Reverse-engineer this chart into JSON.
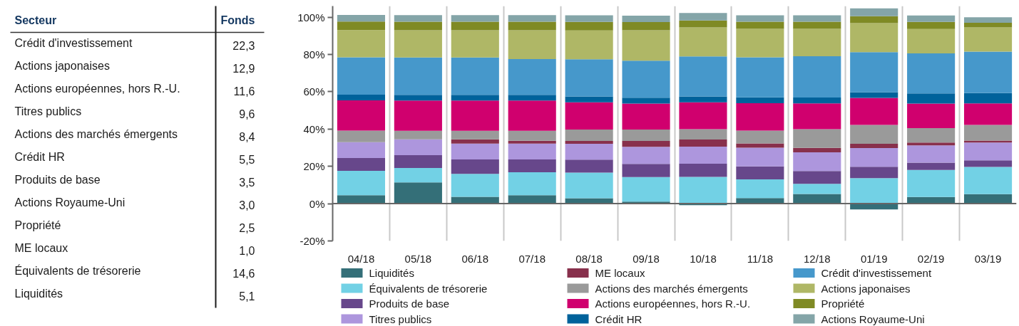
{
  "chart_data": [
    {
      "type": "other",
      "xlabel": "Secteur",
      "ylabel": "Fonds",
      "categories": [
        "Crédit d'investissement",
        "Actions japonaises",
        "Actions européennes, hors R.-U.",
        "Titres publics",
        "Actions des marchés émergents",
        "Crédit HR",
        "Produits de base",
        "Actions Royaume-Uni",
        "Propriété",
        "ME locaux",
        "Équivalents de trésorerie",
        "Liquidités"
      ],
      "value_labels": [
        "22,3",
        "12,9",
        "11,6",
        "9,6",
        "8,4",
        "5,5",
        "3,5",
        "3,0",
        "2,5",
        "1,0",
        "14,6",
        "5,1"
      ]
    },
    {
      "type": "bar",
      "stacked": true,
      "categories": [
        "04/18",
        "05/18",
        "06/18",
        "07/18",
        "08/18",
        "09/18",
        "10/18",
        "11/18",
        "12/18",
        "01/19",
        "02/19",
        "03/19"
      ],
      "series": [
        {
          "name": "Liquidités",
          "color": "#346f78",
          "values": [
            4.5,
            11.4,
            3.7,
            4.5,
            2.9,
            1.1,
            -0.8,
            3.0,
            5.2,
            -3.1,
            3.6,
            5.1
          ]
        },
        {
          "name": "Équivalents de trésorerie",
          "color": "#72d1e5",
          "values": [
            13.1,
            7.7,
            12.3,
            12.3,
            13.8,
            13.2,
            14.4,
            10.0,
            5.4,
            13.7,
            14.5,
            14.6
          ]
        },
        {
          "name": "Produits de base",
          "color": "#67478b",
          "values": [
            6.9,
            6.9,
            7.7,
            6.9,
            6.9,
            7.0,
            7.0,
            7.0,
            6.9,
            6.1,
            3.9,
            3.5
          ]
        },
        {
          "name": "Titres publics",
          "color": "#ad96dd",
          "values": [
            8.5,
            8.5,
            8.5,
            8.5,
            8.5,
            9.2,
            9.2,
            10.0,
            10.0,
            10.0,
            9.3,
            9.6
          ]
        },
        {
          "name": "ME locaux",
          "color": "#88304c",
          "values": [
            null,
            null,
            2.3,
            1.5,
            1.5,
            3.1,
            3.8,
            2.3,
            2.4,
            2.3,
            1.5,
            1.0
          ]
        },
        {
          "name": "Actions des marchés émergents",
          "color": "#9a9a9a",
          "values": [
            6.2,
            4.6,
            4.6,
            5.4,
            6.2,
            6.2,
            5.5,
            6.9,
            10.0,
            10.1,
            7.7,
            8.4
          ]
        },
        {
          "name": "Actions européennes, hors R.-U.",
          "color": "#d0006e",
          "values": [
            16.2,
            16.2,
            16.2,
            16.2,
            14.6,
            13.9,
            14.5,
            14.7,
            13.9,
            14.5,
            13.2,
            11.6
          ]
        },
        {
          "name": "Crédit HR",
          "color": "#00629b",
          "values": [
            3.1,
            3.1,
            3.1,
            3.1,
            3.1,
            3.1,
            3.1,
            3.1,
            3.1,
            3.1,
            5.4,
            5.5
          ]
        },
        {
          "name": "Crédit d'investissement",
          "color": "#4698cb",
          "values": [
            20.0,
            20.0,
            20.0,
            19.2,
            20.0,
            19.9,
            21.5,
            21.5,
            22.2,
            21.5,
            21.5,
            22.3
          ]
        },
        {
          "name": "Actions japonaises",
          "color": "#afb766",
          "values": [
            14.6,
            14.6,
            14.6,
            15.4,
            15.4,
            16.3,
            15.5,
            15.3,
            14.7,
            15.5,
            13.1,
            12.9
          ]
        },
        {
          "name": "Propriété",
          "color": "#7f8a24",
          "values": [
            4.6,
            4.6,
            4.6,
            4.6,
            4.6,
            4.4,
            3.8,
            3.8,
            3.8,
            3.8,
            3.8,
            2.5
          ]
        },
        {
          "name": "Actions Royaume-Uni",
          "color": "#84a5a8",
          "values": [
            3.5,
            3.5,
            3.5,
            3.5,
            3.5,
            3.4,
            4.0,
            3.4,
            3.4,
            4.2,
            3.4,
            3.0
          ]
        }
      ],
      "ylim": [
        -20,
        106
      ],
      "yticks": [
        {
          "value": -20,
          "label": "-20%"
        },
        {
          "value": 0,
          "label": "0%"
        },
        {
          "value": 20,
          "label": "20%"
        },
        {
          "value": 40,
          "label": "40%"
        },
        {
          "value": 60,
          "label": "60%"
        },
        {
          "value": 80,
          "label": "80%"
        },
        {
          "value": 100,
          "label": "100%"
        }
      ],
      "grid": "x",
      "legend": "bottom"
    }
  ]
}
